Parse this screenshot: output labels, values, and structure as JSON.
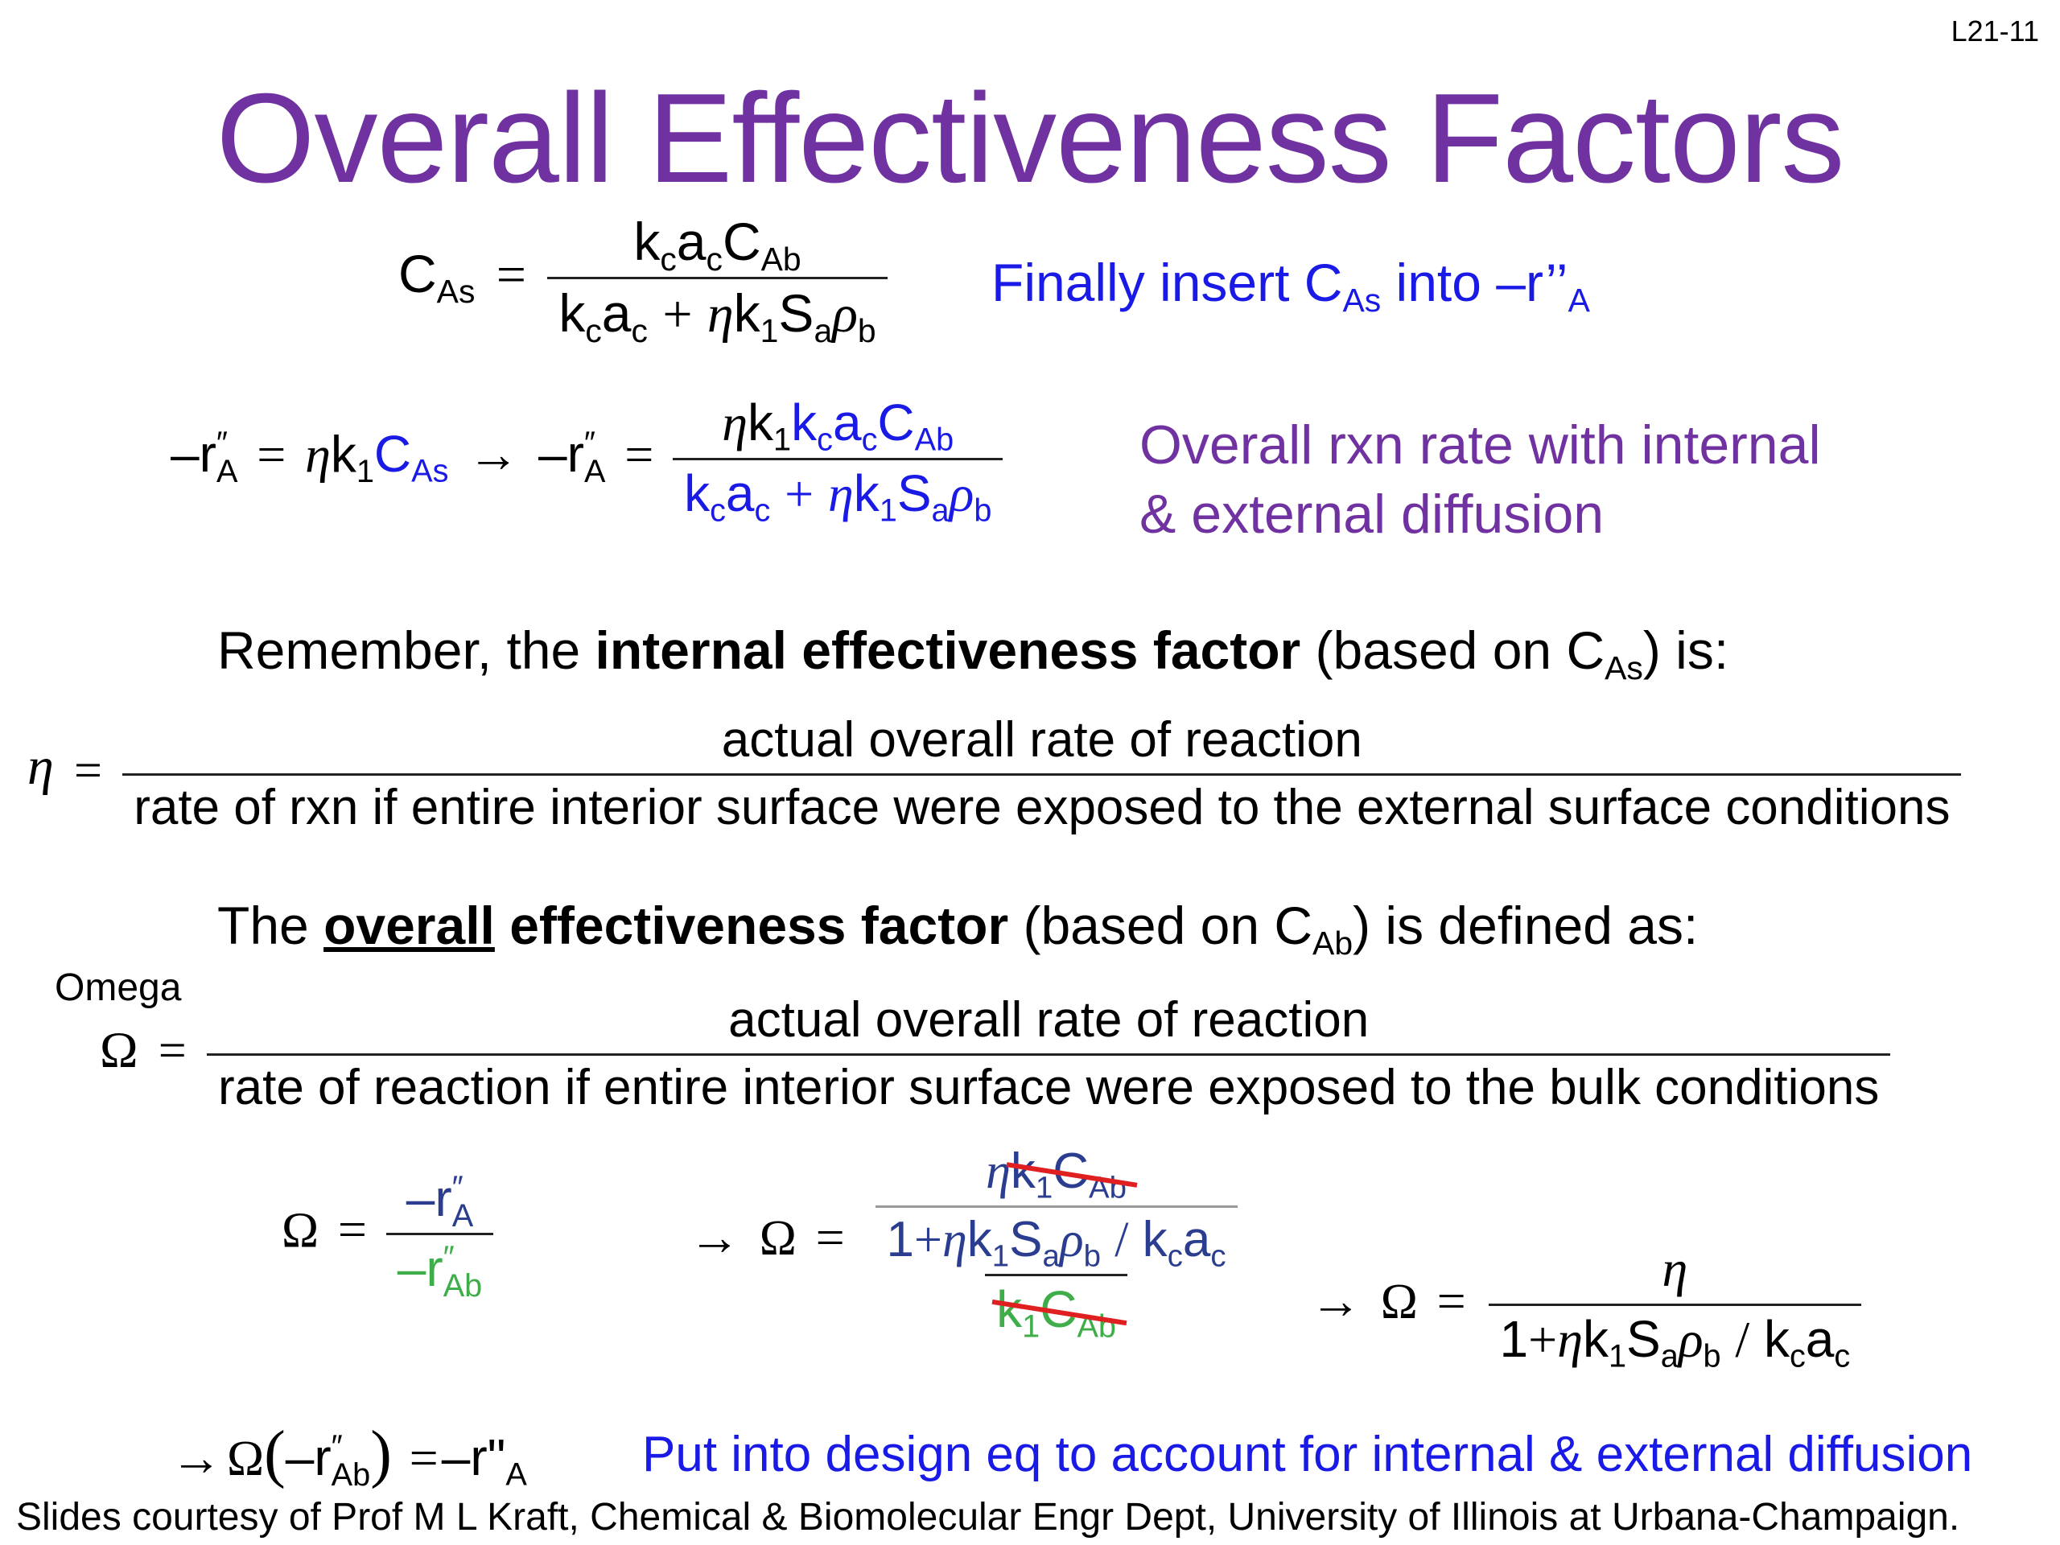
{
  "slide": {
    "number": "L21-11",
    "title": "Overall Effectiveness Factors",
    "eq1_note_parts": [
      "Finally insert C",
      "As",
      " into –r’’",
      "A"
    ],
    "eq2_note_line1": "Overall rxn rate with internal",
    "eq2_note_line2": "& external diffusion",
    "remember": {
      "prefix": "Remember, the ",
      "bold": "internal effectiveness factor",
      "mid": " (based on C",
      "sub": "As",
      "suffix": ") is:"
    },
    "eta_def": {
      "numerator": "actual overall rate of reaction",
      "denominator": "rate of rxn if entire interior surface were exposed to the external surface conditions"
    },
    "overall": {
      "prefix": "The ",
      "underlined": "overall",
      "bold": " effectiveness factor",
      "mid": " (based on C",
      "sub": "Ab",
      "suffix": ") is defined as:"
    },
    "omega_label": "Omega",
    "omega_def": {
      "numerator": "actual overall rate of reaction",
      "denominator": "rate of reaction if entire interior surface were exposed to the bulk conditions"
    },
    "design_note": "Put into design eq to account for internal & external diffusion",
    "footer": "Slides courtesy of Prof M L Kraft, Chemical & Biomolecular Engr Dept, University of Illinois at Urbana-Champaign."
  },
  "colors": {
    "title": "#7032a0",
    "blue_note": "#1a1ae6",
    "navy": "#2a3d8f",
    "green": "#3fae4a",
    "strike": "#e02020"
  }
}
